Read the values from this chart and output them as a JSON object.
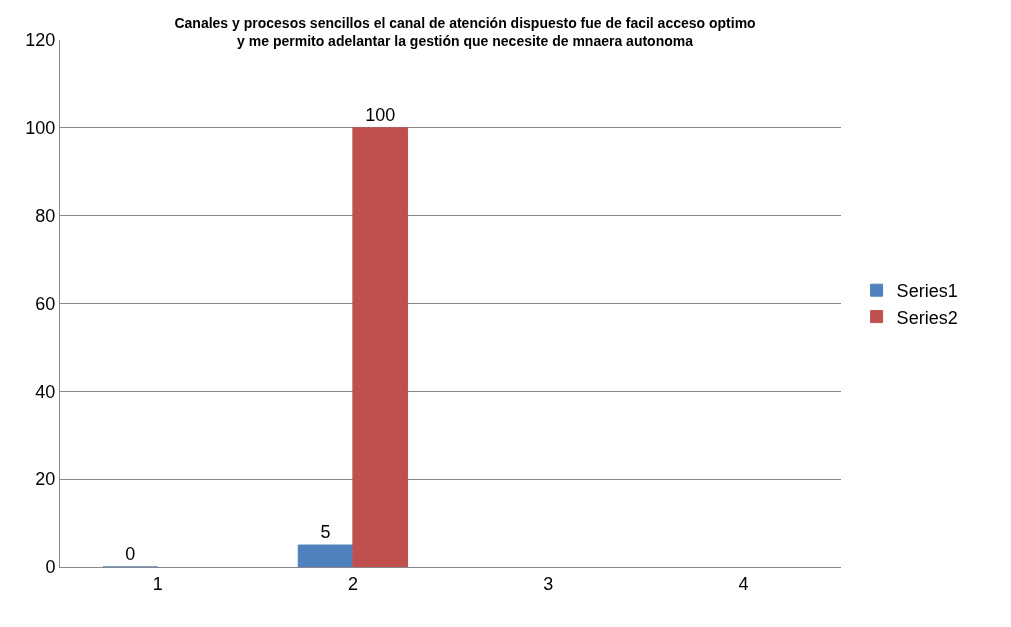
{
  "chart_data": {
    "type": "bar",
    "title": "Canales y procesos sencillos el canal de atención dispuesto fue de facil acceso optimo y me permito adelantar la gestión que necesite de mnaera autonoma",
    "categories": [
      "1",
      "2",
      "3",
      "4"
    ],
    "series": [
      {
        "name": "Series1",
        "color": "#4f81bd",
        "values": [
          0,
          5,
          null,
          null
        ],
        "value_labels": [
          "0",
          "5",
          null,
          null
        ]
      },
      {
        "name": "Series2",
        "color": "#c0504d",
        "values": [
          null,
          100,
          null,
          null
        ],
        "value_labels": [
          null,
          "100",
          null,
          null
        ]
      }
    ],
    "ylim": [
      0,
      120
    ],
    "yticks": [
      0,
      20,
      40,
      60,
      80,
      100,
      120
    ],
    "grid": "y",
    "legend": "right"
  }
}
